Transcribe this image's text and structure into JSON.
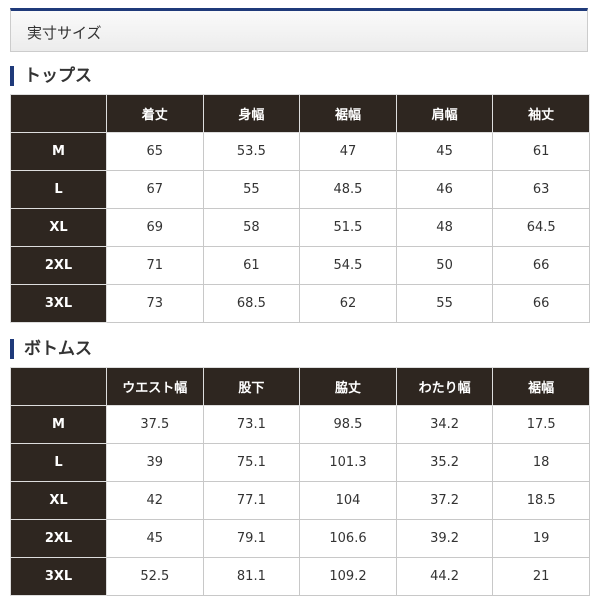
{
  "title": "実寸サイズ",
  "colors": {
    "accent": "#1f3a7a",
    "header_bg": "#2e2620"
  },
  "tops": {
    "heading": "トップス",
    "columns": [
      "着丈",
      "身幅",
      "裾幅",
      "肩幅",
      "袖丈"
    ],
    "rows": [
      {
        "size": "M",
        "values": [
          "65",
          "53.5",
          "47",
          "45",
          "61"
        ]
      },
      {
        "size": "L",
        "values": [
          "67",
          "55",
          "48.5",
          "46",
          "63"
        ]
      },
      {
        "size": "XL",
        "values": [
          "69",
          "58",
          "51.5",
          "48",
          "64.5"
        ]
      },
      {
        "size": "2XL",
        "values": [
          "71",
          "61",
          "54.5",
          "50",
          "66"
        ]
      },
      {
        "size": "3XL",
        "values": [
          "73",
          "68.5",
          "62",
          "55",
          "66"
        ]
      }
    ]
  },
  "bottoms": {
    "heading": "ボトムス",
    "columns": [
      "ウエスト幅",
      "股下",
      "脇丈",
      "わたり幅",
      "裾幅"
    ],
    "rows": [
      {
        "size": "M",
        "values": [
          "37.5",
          "73.1",
          "98.5",
          "34.2",
          "17.5"
        ]
      },
      {
        "size": "L",
        "values": [
          "39",
          "75.1",
          "101.3",
          "35.2",
          "18"
        ]
      },
      {
        "size": "XL",
        "values": [
          "42",
          "77.1",
          "104",
          "37.2",
          "18.5"
        ]
      },
      {
        "size": "2XL",
        "values": [
          "45",
          "79.1",
          "106.6",
          "39.2",
          "19"
        ]
      },
      {
        "size": "3XL",
        "values": [
          "52.5",
          "81.1",
          "109.2",
          "44.2",
          "21"
        ]
      }
    ]
  }
}
